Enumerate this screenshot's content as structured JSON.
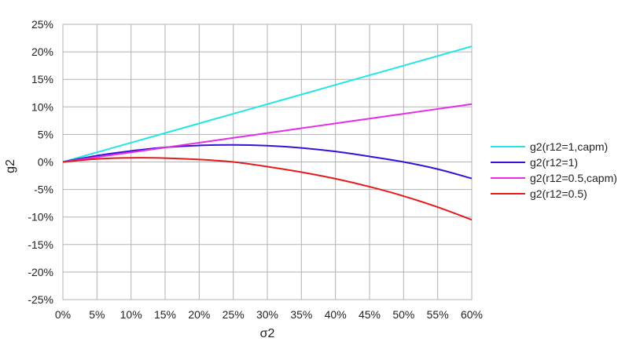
{
  "chart_data": {
    "type": "line",
    "xlabel": "σ2",
    "ylabel": "g2",
    "xlim": [
      0,
      0.6
    ],
    "ylim": [
      -0.25,
      0.25
    ],
    "x_ticks": [
      {
        "value": 0.0,
        "label": "0%"
      },
      {
        "value": 0.05,
        "label": "5%"
      },
      {
        "value": 0.1,
        "label": "10%"
      },
      {
        "value": 0.15,
        "label": "15%"
      },
      {
        "value": 0.2,
        "label": "20%"
      },
      {
        "value": 0.25,
        "label": "25%"
      },
      {
        "value": 0.3,
        "label": "30%"
      },
      {
        "value": 0.35,
        "label": "35%"
      },
      {
        "value": 0.4,
        "label": "40%"
      },
      {
        "value": 0.45,
        "label": "45%"
      },
      {
        "value": 0.5,
        "label": "50%"
      },
      {
        "value": 0.55,
        "label": "55%"
      },
      {
        "value": 0.6,
        "label": "60%"
      }
    ],
    "y_ticks": [
      {
        "value": 0.25,
        "label": "25%"
      },
      {
        "value": 0.2,
        "label": "20%"
      },
      {
        "value": 0.15,
        "label": "15%"
      },
      {
        "value": 0.1,
        "label": "10%"
      },
      {
        "value": 0.05,
        "label": "5%"
      },
      {
        "value": 0.0,
        "label": "0%"
      },
      {
        "value": -0.05,
        "label": "-5%"
      },
      {
        "value": -0.1,
        "label": "-10%"
      },
      {
        "value": -0.15,
        "label": "-15%"
      },
      {
        "value": -0.2,
        "label": "-20%"
      },
      {
        "value": -0.25,
        "label": "-25%"
      }
    ],
    "grid": true,
    "legend_position": "right",
    "series": [
      {
        "name": "g2(r12=1,capm)",
        "color": "#22e6e6",
        "x": [
          0,
          0.05,
          0.1,
          0.15,
          0.2,
          0.25,
          0.3,
          0.35,
          0.4,
          0.45,
          0.5,
          0.55,
          0.6
        ],
        "y": [
          0,
          0.0175,
          0.035,
          0.0525,
          0.07,
          0.0875,
          0.105,
          0.1225,
          0.14,
          0.1575,
          0.175,
          0.1925,
          0.21
        ]
      },
      {
        "name": "g2(r12=1)",
        "color": "#3a10d8",
        "x": [
          0,
          0.05,
          0.1,
          0.15,
          0.2,
          0.25,
          0.3,
          0.35,
          0.4,
          0.45,
          0.5,
          0.55,
          0.6
        ],
        "y": [
          0,
          0.0115,
          0.02,
          0.0265,
          0.03,
          0.031,
          0.0295,
          0.0255,
          0.019,
          0.01,
          0.0,
          -0.013,
          -0.03
        ]
      },
      {
        "name": "g2(r12=0.5,capm)",
        "color": "#e62ee6",
        "x": [
          0,
          0.05,
          0.1,
          0.15,
          0.2,
          0.25,
          0.3,
          0.35,
          0.4,
          0.45,
          0.5,
          0.55,
          0.6
        ],
        "y": [
          0,
          0.00875,
          0.0175,
          0.02625,
          0.035,
          0.04375,
          0.0525,
          0.06125,
          0.07,
          0.07875,
          0.0875,
          0.09625,
          0.105
        ]
      },
      {
        "name": "g2(r12=0.5)",
        "color": "#e61a1a",
        "x": [
          0,
          0.05,
          0.1,
          0.15,
          0.2,
          0.25,
          0.3,
          0.35,
          0.4,
          0.45,
          0.5,
          0.55,
          0.6
        ],
        "y": [
          0,
          0.0055,
          0.0075,
          0.007,
          0.0045,
          0.0,
          -0.0085,
          -0.0185,
          -0.0305,
          -0.045,
          -0.062,
          -0.082,
          -0.105
        ]
      }
    ]
  }
}
